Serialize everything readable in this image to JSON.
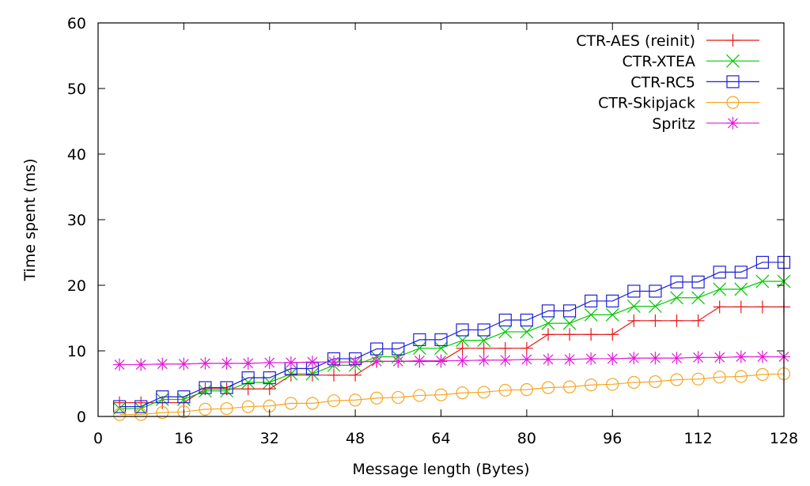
{
  "chart_data": {
    "type": "line",
    "title": "",
    "xlabel": "Message length (Bytes)",
    "ylabel": "Time spent (ms)",
    "xlim": [
      0,
      128
    ],
    "ylim": [
      0,
      60
    ],
    "x_ticks": [
      0,
      16,
      32,
      48,
      64,
      80,
      96,
      112,
      128
    ],
    "y_ticks": [
      0,
      10,
      20,
      30,
      40,
      50,
      60
    ],
    "x_tick_labels": [
      "0",
      "16",
      "32",
      "48",
      "64",
      "80",
      "96",
      "112",
      "128"
    ],
    "y_tick_labels": [
      "0",
      "10",
      "20",
      "30",
      "40",
      "50",
      "60"
    ],
    "grid": false,
    "legend_position": "top-right",
    "x": [
      4,
      8,
      12,
      16,
      20,
      24,
      28,
      32,
      36,
      40,
      44,
      48,
      52,
      56,
      60,
      64,
      68,
      72,
      76,
      80,
      84,
      88,
      92,
      96,
      100,
      104,
      108,
      112,
      116,
      120,
      124,
      128
    ],
    "series": [
      {
        "name": "CTR-AES (reinit)",
        "color": "#e41a1c",
        "marker": "plus",
        "values": [
          2.1,
          2.1,
          2.1,
          2.1,
          4.2,
          4.2,
          4.2,
          4.2,
          6.3,
          6.3,
          6.3,
          6.3,
          8.4,
          8.4,
          8.4,
          8.4,
          10.4,
          10.4,
          10.4,
          10.4,
          12.5,
          12.5,
          12.5,
          12.5,
          14.6,
          14.6,
          14.6,
          14.6,
          16.7,
          16.7,
          16.7,
          16.7
        ]
      },
      {
        "name": "CTR-XTEA",
        "color": "#00c800",
        "marker": "cross",
        "values": [
          1.2,
          1.2,
          2.6,
          2.6,
          3.9,
          3.9,
          5.2,
          5.2,
          6.5,
          6.5,
          7.8,
          7.8,
          9.1,
          9.1,
          10.4,
          10.4,
          11.6,
          11.6,
          12.9,
          12.9,
          14.2,
          14.2,
          15.5,
          15.5,
          16.8,
          16.8,
          18.1,
          18.1,
          19.4,
          19.4,
          20.6,
          20.6
        ]
      },
      {
        "name": "CTR-RC5",
        "color": "#1f1fd6",
        "marker": "square",
        "values": [
          1.5,
          1.5,
          3.0,
          3.0,
          4.4,
          4.4,
          5.9,
          5.9,
          7.3,
          7.3,
          8.8,
          8.8,
          10.3,
          10.3,
          11.7,
          11.7,
          13.2,
          13.2,
          14.7,
          14.7,
          16.1,
          16.1,
          17.6,
          17.6,
          19.1,
          19.1,
          20.5,
          20.5,
          22.0,
          22.0,
          23.5,
          23.5
        ]
      },
      {
        "name": "CTR-Skipjack",
        "color": "#f5a623",
        "marker": "circle",
        "values": [
          0.3,
          0.3,
          0.6,
          0.7,
          1.1,
          1.2,
          1.5,
          1.6,
          2.0,
          2.0,
          2.4,
          2.5,
          2.8,
          2.9,
          3.2,
          3.3,
          3.6,
          3.7,
          4.0,
          4.1,
          4.4,
          4.5,
          4.8,
          4.9,
          5.2,
          5.3,
          5.6,
          5.7,
          6.0,
          6.1,
          6.4,
          6.5
        ]
      },
      {
        "name": "Spritz",
        "color": "#e01cd8",
        "marker": "star",
        "values": [
          7.9,
          7.9,
          8.0,
          8.0,
          8.1,
          8.1,
          8.1,
          8.2,
          8.2,
          8.3,
          8.3,
          8.3,
          8.4,
          8.4,
          8.5,
          8.5,
          8.5,
          8.6,
          8.6,
          8.7,
          8.7,
          8.7,
          8.8,
          8.8,
          8.9,
          8.9,
          8.9,
          9.0,
          9.0,
          9.1,
          9.1,
          9.1
        ]
      }
    ]
  }
}
